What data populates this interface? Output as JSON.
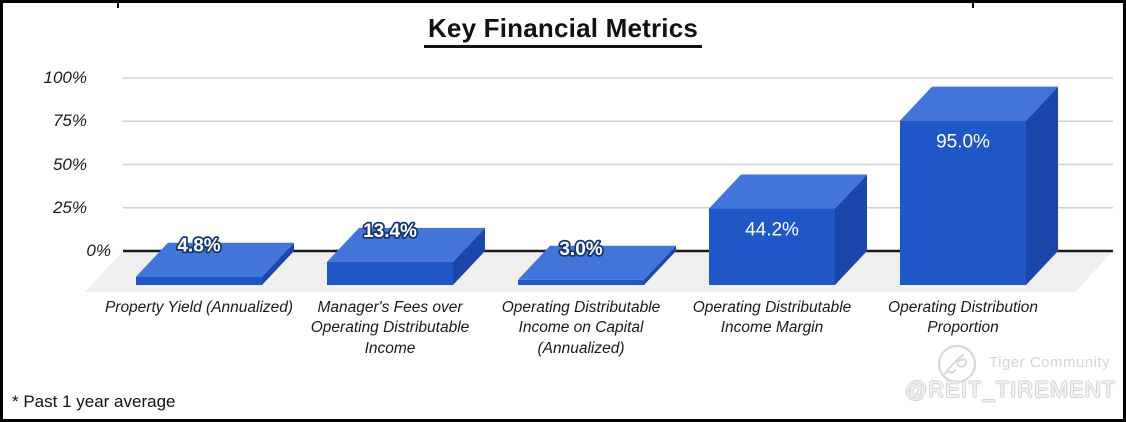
{
  "title": "Key Financial Metrics",
  "footnote": "* Past 1 year average",
  "watermark": {
    "logo_icon": "tiger-logo-icon",
    "community": "Tiger Community",
    "handle": "@REIT_TIREMENT"
  },
  "colors": {
    "bar_front": "#2057c7",
    "bar_top": "#4274d9",
    "bar_side": "#1a47a9",
    "floor": "#efefef",
    "gridline": "#d2d2d2",
    "axis_line": "#1a1a1a",
    "value_label_fill": "#ffffff",
    "value_label_outline": "#15356e"
  },
  "chart_data": {
    "type": "bar",
    "projection": "3d",
    "title": "Key Financial Metrics",
    "categories": [
      "Property Yield (Annualized)",
      "Manager's Fees over Operating Distributable Income",
      "Operating Distributable Income on Capital (Annualized)",
      "Operating Distributable Income Margin",
      "Operating Distribution Proportion"
    ],
    "category_lines": [
      [
        "Property Yield (Annualized)"
      ],
      [
        "Manager's Fees over",
        "Operating Distributable",
        "Income"
      ],
      [
        "Operating Distributable",
        "Income on Capital",
        "(Annualized)"
      ],
      [
        "Operating Distributable",
        "Income Margin"
      ],
      [
        "Operating Distribution",
        "Proportion"
      ]
    ],
    "values": [
      4.8,
      13.4,
      3.0,
      44.2,
      95.0
    ],
    "value_labels": [
      "4.8%",
      "13.4%",
      "3.0%",
      "44.2%",
      "95.0%"
    ],
    "yticks": [
      "100%",
      "75%",
      "50%",
      "25%",
      "0%"
    ],
    "ytick_values": [
      100,
      75,
      50,
      25,
      0
    ],
    "ylim": [
      0,
      100
    ],
    "grid": true,
    "legend": false,
    "xlabel": "",
    "ylabel": ""
  }
}
